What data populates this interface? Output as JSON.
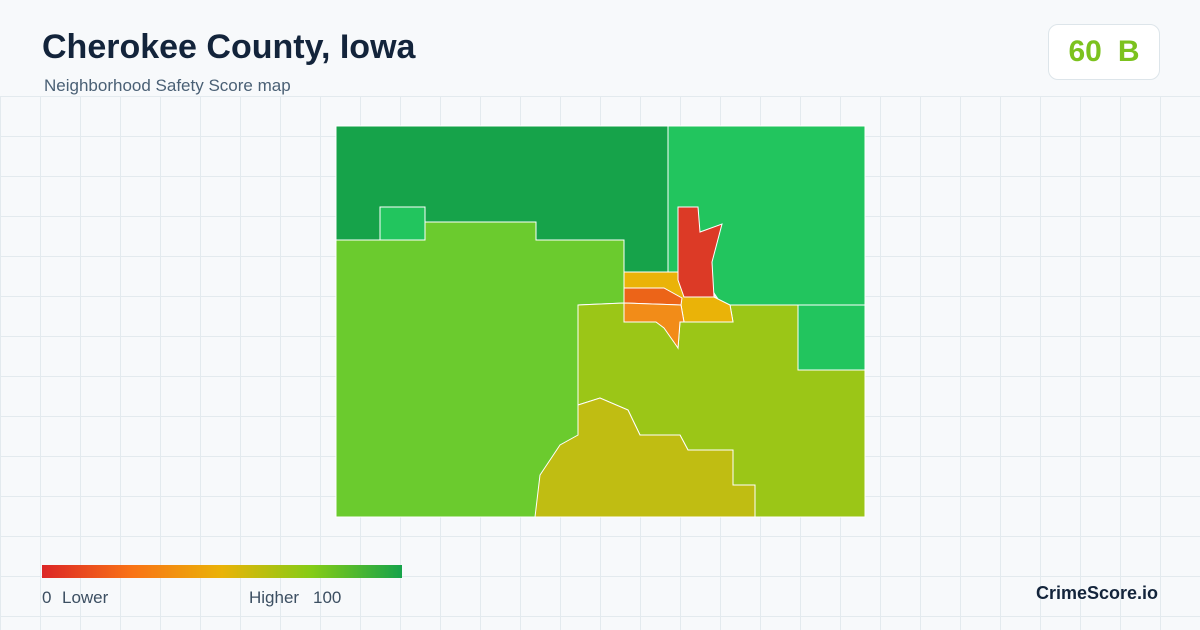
{
  "header": {
    "title": "Cherokee County, Iowa",
    "subtitle": "Neighborhood Safety Score map"
  },
  "score": {
    "value": "60",
    "grade": "B"
  },
  "legend": {
    "min": 0,
    "min_label": "Lower",
    "max_label": "Higher",
    "max": 100
  },
  "brand": "CrimeScore.io"
}
